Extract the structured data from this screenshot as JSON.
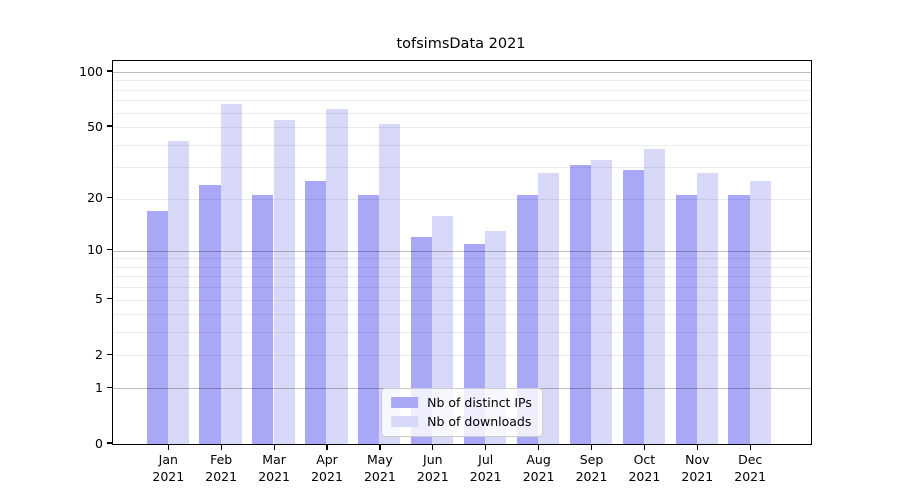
{
  "title": "tofsimsData 2021",
  "chart_data": {
    "type": "bar",
    "title": "tofsimsData 2021",
    "categories": [
      "Jan 2021",
      "Feb 2021",
      "Mar 2021",
      "Apr 2021",
      "May 2021",
      "Jun 2021",
      "Jul 2021",
      "Aug 2021",
      "Sep 2021",
      "Oct 2021",
      "Nov 2021",
      "Dec 2021"
    ],
    "months": [
      "Jan",
      "Feb",
      "Mar",
      "Apr",
      "May",
      "Jun",
      "Jul",
      "Aug",
      "Sep",
      "Oct",
      "Nov",
      "Dec"
    ],
    "year": "2021",
    "series": [
      {
        "name": "Nb of distinct IPs",
        "color": "#a8a8f7",
        "values": [
          17,
          24,
          21,
          25,
          21,
          12,
          11,
          21,
          31,
          29,
          21,
          21
        ]
      },
      {
        "name": "Nb of downloads",
        "color": "#d8d8f9",
        "values": [
          42,
          67,
          55,
          63,
          52,
          16,
          13,
          28,
          33,
          38,
          28,
          25
        ]
      }
    ],
    "yscale": "log1p",
    "ylim": [
      0,
      114
    ],
    "y_tick_labels": [
      "100",
      "50",
      "20",
      "10",
      "5",
      "2",
      "1",
      "0"
    ],
    "y_tick_values": [
      100,
      50,
      20,
      10,
      5,
      2,
      1,
      0
    ],
    "y_major_gridlines": [
      1,
      10,
      100
    ],
    "y_minor_gridlines": [
      2,
      3,
      4,
      5,
      6,
      7,
      8,
      9,
      20,
      30,
      40,
      50,
      60,
      70,
      80,
      90
    ],
    "grid": true,
    "legend_position": "lower center",
    "colors": {
      "spine": "#000000",
      "grid_major": "#bdbdbd",
      "grid_minor": "#ececec",
      "background": "#ffffff"
    }
  }
}
